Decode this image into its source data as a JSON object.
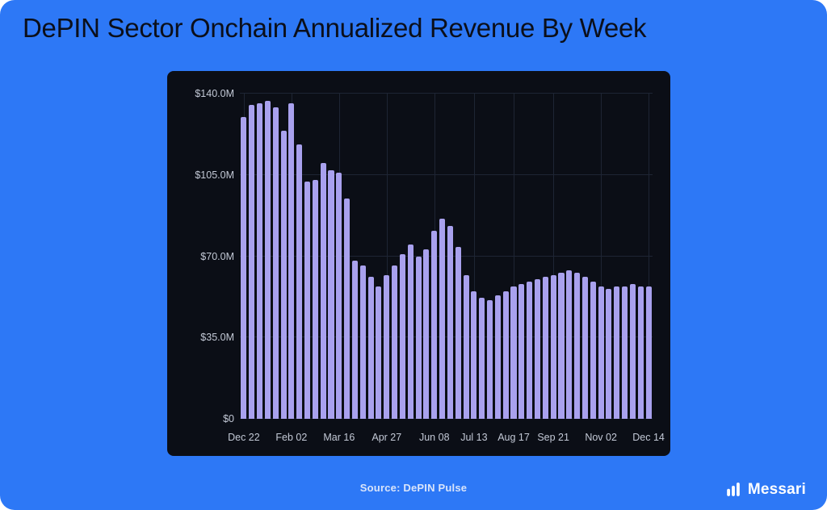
{
  "title": "DePIN Sector Onchain Annualized Revenue By Week",
  "source_label": "Source: DePIN Pulse",
  "brand": "Messari",
  "colors": {
    "background": "#2d78f6",
    "panel": "#0b0e16",
    "bar": "#a9a1ee",
    "title_text": "#0b0f1a",
    "axis_text": "#c3c9d6",
    "grid": "#1e2534",
    "footer_text": "#d9e4fa"
  },
  "chart_data": {
    "type": "bar",
    "title": "DePIN Sector Onchain Annualized Revenue By Week",
    "xlabel": "",
    "ylabel": "",
    "unit": "USD millions, annualized",
    "ylim": [
      0,
      140
    ],
    "grid": true,
    "legend": false,
    "y_ticks": [
      {
        "label": "$140.0M",
        "value": 140
      },
      {
        "label": "$105.0M",
        "value": 105
      },
      {
        "label": "$70.0M",
        "value": 70
      },
      {
        "label": "$35.0M",
        "value": 35
      },
      {
        "label": "$0",
        "value": 0
      }
    ],
    "x_ticks": [
      {
        "label": "Dec 22",
        "index": 0
      },
      {
        "label": "Feb 02",
        "index": 6
      },
      {
        "label": "Mar 16",
        "index": 12
      },
      {
        "label": "Apr 27",
        "index": 18
      },
      {
        "label": "Jun 08",
        "index": 24
      },
      {
        "label": "Jul 13",
        "index": 29
      },
      {
        "label": "Aug 17",
        "index": 34
      },
      {
        "label": "Sep 21",
        "index": 39
      },
      {
        "label": "Nov 02",
        "index": 45
      },
      {
        "label": "Dec 14",
        "index": 51
      }
    ],
    "values": [
      130,
      135,
      136,
      137,
      134,
      124,
      136,
      118,
      102,
      103,
      110,
      107,
      106,
      95,
      68,
      66,
      61,
      57,
      62,
      66,
      71,
      75,
      70,
      73,
      81,
      86,
      83,
      74,
      62,
      55,
      52,
      51,
      53,
      55,
      57,
      58,
      59,
      60,
      61,
      62,
      63,
      64,
      63,
      61,
      59,
      57,
      56,
      57,
      57,
      58,
      57,
      57
    ]
  }
}
